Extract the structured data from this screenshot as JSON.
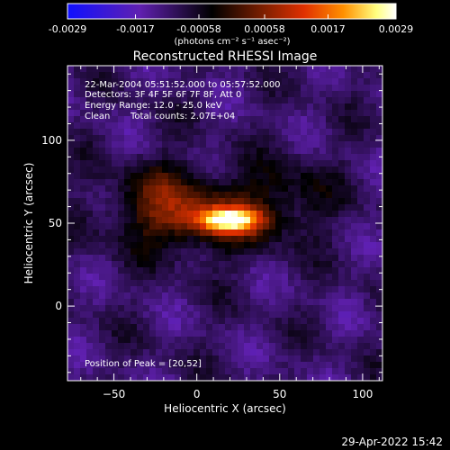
{
  "footer": {
    "timestamp": "29-Apr-2022 15:42"
  },
  "chart_data": {
    "type": "heatmap",
    "title": "Reconstructed RHESSI Image",
    "xlabel": "Heliocentric X (arcsec)",
    "ylabel": "Heliocentric Y (arcsec)",
    "xlim": [
      -78,
      112
    ],
    "ylim": [
      -45,
      145
    ],
    "x_ticks": [
      -50,
      0,
      50,
      100
    ],
    "y_ticks": [
      0,
      50,
      100
    ],
    "colorbar": {
      "range": [
        -0.0029,
        0.0029
      ],
      "tick_values": [
        -0.0029,
        -0.0017,
        -0.00058,
        0.00058,
        0.0017,
        0.0029
      ],
      "tick_labels": [
        "-0.0029",
        "-0.0017",
        "-0.00058",
        "0.00058",
        "0.0017",
        "0.0029"
      ],
      "units": "(photons cm⁻² s⁻¹ asec⁻²)",
      "colors": [
        "#1010ff",
        "#6020b0",
        "#000000",
        "#802000",
        "#e03000",
        "#ff9000",
        "#ffff80",
        "#ffffff"
      ]
    },
    "annotations": {
      "time_range": "22-Mar-2004 05:51:52.000 to 05:57:52.000",
      "detectors": "Detectors: 3F 4F 5F 6F 7F 8F, Att 0",
      "energy_range": "Energy Range: 12.0 - 25.0 keV",
      "clean_label": "Clean",
      "total_counts": "Total counts: 2.07E+04",
      "peak": "Position of Peak = [20,52]"
    },
    "peak_position": [
      20,
      52
    ],
    "sources": [
      {
        "x": 20,
        "y": 52,
        "sx": 14,
        "sy": 5,
        "amp": 0.0029
      },
      {
        "x": 2,
        "y": 53,
        "sx": 35,
        "sy": 15,
        "amp": 0.0014
      },
      {
        "x": -20,
        "y": 70,
        "sx": 20,
        "sy": 15,
        "amp": 0.0007
      },
      {
        "x": 55,
        "y": 70,
        "sx": 20,
        "sy": 15,
        "amp": 0.0006
      }
    ],
    "background_level": -0.0011
  }
}
